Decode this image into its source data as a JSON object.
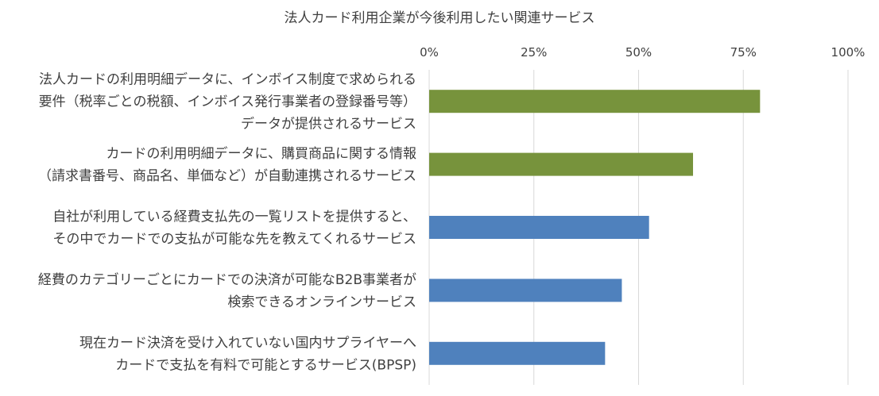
{
  "chart_data": {
    "type": "bar",
    "orientation": "horizontal",
    "title": "法人カード利用企業が今後利用したい関連サービス",
    "x_ticks": [
      "0%",
      "25%",
      "50%",
      "75%",
      "100%"
    ],
    "xlim": [
      0,
      100
    ],
    "x_axis_position": "top",
    "grid": true,
    "legend": "none",
    "categories": [
      [
        "法人カードの利用明細データに、インボイス制度で求められる",
        "要件（税率ごとの税額、インボイス発行事業者の登録番号等）",
        "データが提供されるサービス"
      ],
      [
        "カードの利用明細データに、購買商品に関する情報",
        "（請求書番号、商品名、単価など）が自動連携されるサービス"
      ],
      [
        "自社が利用している経費支払先の一覧リストを提供すると、",
        "その中でカードでの支払が可能な先を教えてくれるサービス"
      ],
      [
        "経費のカテゴリーごとにカードでの決済が可能なB2B事業者が",
        "検索できるオンラインサービス"
      ],
      [
        "現在カード決済を受け入れていない国内サプライヤーへ",
        "カードで支払を有料で可能とするサービス(BPSP)"
      ]
    ],
    "values": [
      79,
      63,
      52.5,
      46,
      42
    ],
    "bar_colors": [
      "#77933C",
      "#77933C",
      "#4F81BD",
      "#4F81BD",
      "#4F81BD"
    ],
    "gridline_color": "#D9D9D9"
  }
}
